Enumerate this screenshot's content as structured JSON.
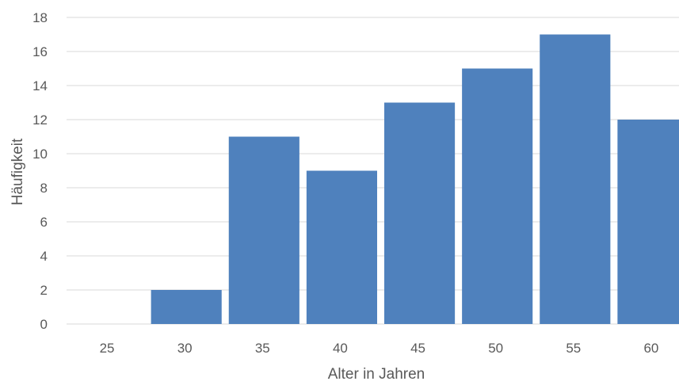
{
  "chart_data": {
    "type": "bar",
    "title": "",
    "xlabel": "Alter in Jahren",
    "ylabel": "Häufigkeit",
    "categories": [
      "25",
      "30",
      "35",
      "40",
      "45",
      "50",
      "55",
      "60"
    ],
    "values": [
      0,
      2,
      11,
      9,
      13,
      15,
      17,
      12
    ],
    "ylim": [
      0,
      18
    ],
    "yticks": [
      "0",
      "2",
      "4",
      "6",
      "8",
      "10",
      "12",
      "14",
      "16",
      "18"
    ],
    "grid": true,
    "legend": "none",
    "bar_color": "#4f81bd"
  }
}
